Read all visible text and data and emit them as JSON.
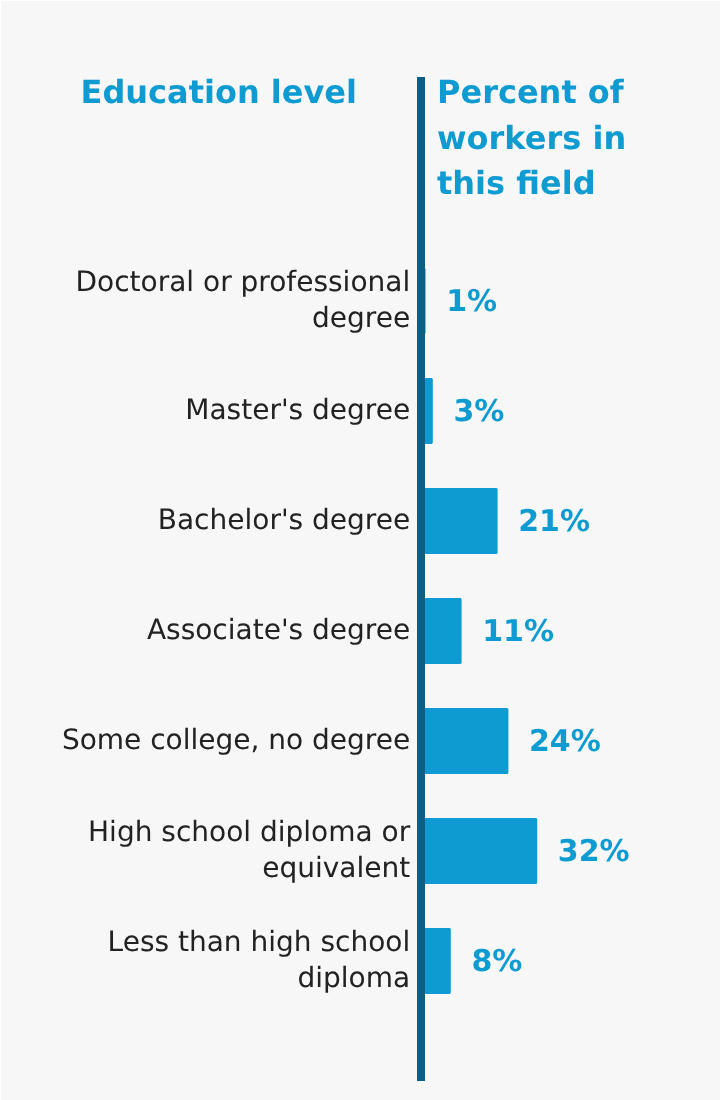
{
  "chart_data": {
    "type": "bar",
    "orientation": "horizontal",
    "ylabel": "Education level",
    "xlabel": "Percent of workers in this field",
    "categories": [
      "Doctoral or professional degree",
      "Master's degree",
      "Bachelor's degree",
      "Associate's degree",
      "Some college, no degree",
      "High school diploma or equivalent",
      "Less than high school diploma"
    ],
    "values": [
      1,
      3,
      21,
      11,
      24,
      32,
      8
    ],
    "value_labels": [
      "1%",
      "3%",
      "21%",
      "11%",
      "24%",
      "32%",
      "8%"
    ],
    "color": "#0e9bd2"
  }
}
